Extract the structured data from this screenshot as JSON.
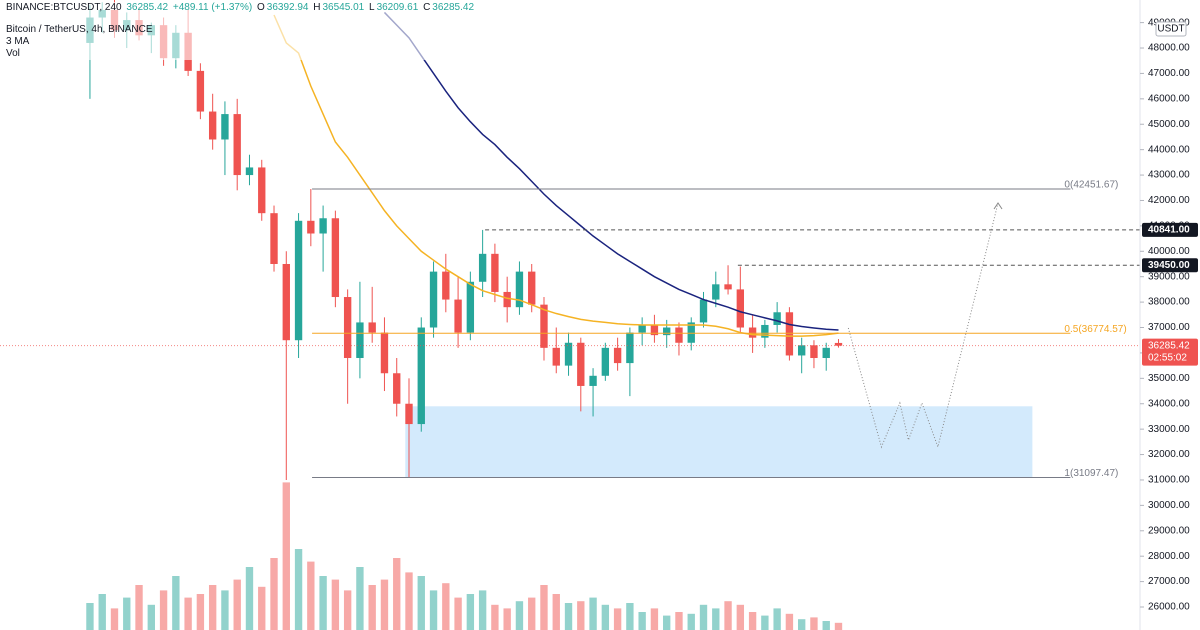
{
  "header": {
    "symbol": "BINANCE:BTCUSDT, 240",
    "change": "+489.11 (+1.37%)",
    "ohlc_letters": [
      "O",
      "H",
      "L",
      "C"
    ],
    "name": "Bitcoin / TetherUS, 4h, BINANCE",
    "ma": "3 MA",
    "vol": "Vol",
    "currency": "USDT",
    "countdown": "02:55:02"
  },
  "chart_data": {
    "type": "candlestick",
    "up_color": "#26a69a",
    "down_color": "#ef5350",
    "xlim": [
      -7.33,
      85.57
    ],
    "ylim": [
      25095,
      49890
    ],
    "vlim": [
      0,
      100
    ],
    "yticks": [
      {
        "value": 26000,
        "label": "26000.00"
      },
      {
        "value": 27000,
        "label": "27000.00"
      },
      {
        "value": 28000,
        "label": "28000.00"
      },
      {
        "value": 29000,
        "label": "29000.00"
      },
      {
        "value": 30000,
        "label": "30000.00"
      },
      {
        "value": 31000,
        "label": "31000.00"
      },
      {
        "value": 32000,
        "label": "32000.00"
      },
      {
        "value": 33000,
        "label": "33000.00"
      },
      {
        "value": 34000,
        "label": "34000.00"
      },
      {
        "value": 35000,
        "label": "35000.00"
      },
      {
        "value": 36000,
        "label": "36000.00"
      },
      {
        "value": 37000,
        "label": "37000.00"
      },
      {
        "value": 38000,
        "label": "38000.00"
      },
      {
        "value": 39000,
        "label": "39000.00"
      },
      {
        "value": 40000,
        "label": "40000.00"
      },
      {
        "value": 41000,
        "label": "41000.00"
      },
      {
        "value": 42000,
        "label": "42000.00"
      },
      {
        "value": 43000,
        "label": "43000.00"
      },
      {
        "value": 44000,
        "label": "44000.00"
      },
      {
        "value": 45000,
        "label": "45000.00"
      },
      {
        "value": 46000,
        "label": "46000.00"
      },
      {
        "value": 47000,
        "label": "47000.00"
      },
      {
        "value": 48000,
        "label": "48000.00"
      },
      {
        "value": 49000,
        "label": "49000.00"
      }
    ],
    "open": [
      48200,
      49200,
      49500,
      48700,
      49100,
      48500,
      48900,
      47600,
      48600,
      47100,
      45500,
      44400,
      45400,
      43000,
      43300,
      41500,
      39500,
      36500,
      41200,
      40700,
      41300,
      38200,
      35800,
      37200,
      36800,
      35200,
      34000,
      33200,
      37000,
      39200,
      38100,
      36800,
      38800,
      39900,
      38400,
      37800,
      39200,
      37900,
      36200,
      35500,
      36400,
      34700,
      35100,
      36200,
      35600,
      36800,
      37100,
      36700,
      37000,
      36400,
      37200,
      38100,
      38700,
      38500,
      37000,
      36600,
      37100,
      37600,
      35900,
      36300,
      35800,
      36392.94
    ],
    "high": [
      49700,
      49800,
      49900,
      49400,
      49600,
      49000,
      49200,
      48900,
      49500,
      47400,
      46200,
      45900,
      46000,
      43800,
      43600,
      41800,
      40000,
      41500,
      42451.67,
      41800,
      41600,
      38500,
      38800,
      38600,
      37400,
      35800,
      35000,
      37400,
      39600,
      39900,
      39000,
      39200,
      40841,
      40300,
      39000,
      39600,
      39500,
      38200,
      37000,
      36800,
      36600,
      35400,
      36400,
      36600,
      37000,
      37400,
      37500,
      37300,
      37200,
      37400,
      38400,
      39200,
      39450,
      39400,
      37500,
      37300,
      38000,
      37800,
      36600,
      36500,
      36400,
      36545.01
    ],
    "low": [
      46000,
      48600,
      48400,
      48000,
      48300,
      47800,
      47300,
      47200,
      46900,
      45200,
      44000,
      43000,
      42400,
      42600,
      41200,
      39200,
      31000,
      35800,
      40200,
      39200,
      37800,
      34000,
      35000,
      36400,
      34500,
      33500,
      31097.47,
      32900,
      36600,
      37600,
      36200,
      36500,
      38200,
      38000,
      37200,
      37500,
      37600,
      35700,
      35200,
      35100,
      33700,
      33500,
      34900,
      35300,
      34300,
      36300,
      36400,
      36200,
      35900,
      36100,
      37000,
      37800,
      38300,
      36800,
      36000,
      36200,
      36800,
      35700,
      35200,
      35400,
      35300,
      36209.61
    ],
    "close": [
      49200,
      49500,
      48700,
      49100,
      48500,
      48900,
      47600,
      48600,
      47100,
      45500,
      44400,
      45400,
      43000,
      43300,
      41500,
      39500,
      36500,
      41200,
      40700,
      41300,
      38200,
      35800,
      37200,
      36800,
      35200,
      34000,
      33200,
      37000,
      39200,
      38100,
      36800,
      38800,
      39900,
      38400,
      37800,
      39200,
      37900,
      36200,
      35500,
      36400,
      34700,
      35100,
      36200,
      35600,
      36800,
      37100,
      36700,
      37000,
      36400,
      37200,
      38100,
      38700,
      38500,
      37000,
      36600,
      37100,
      37600,
      35900,
      36300,
      35800,
      36200,
      36285.42
    ],
    "volume": [
      15,
      20,
      12,
      18,
      25,
      14,
      22,
      30,
      18,
      20,
      25,
      22,
      28,
      35,
      24,
      40,
      82,
      45,
      38,
      30,
      28,
      22,
      35,
      25,
      28,
      40,
      32,
      30,
      22,
      26,
      18,
      20,
      22,
      14,
      12,
      16,
      18,
      25,
      20,
      15,
      16,
      18,
      14,
      12,
      15,
      10,
      12,
      8,
      10,
      9,
      14,
      12,
      16,
      14,
      10,
      8,
      12,
      9,
      6,
      7,
      5,
      4
    ],
    "ma_lines": [
      {
        "color": "#f5b324",
        "values": [
          null,
          null,
          null,
          null,
          null,
          null,
          null,
          null,
          null,
          null,
          null,
          null,
          null,
          null,
          null,
          49300,
          48200,
          47800,
          46500,
          45400,
          44300,
          43700,
          43000,
          42300,
          41600,
          41000,
          40500,
          40000,
          39650,
          39300,
          39000,
          38700,
          38450,
          38300,
          38150,
          38080,
          37900,
          37700,
          37550,
          37430,
          37320,
          37250,
          37200,
          37150,
          37120,
          37100,
          37100,
          37100,
          37100,
          37100,
          37100,
          37050,
          36950,
          36800,
          36720,
          36700,
          36680,
          36660,
          36660,
          36680,
          36720,
          36780
        ]
      },
      {
        "color": "#1a237e",
        "values": [
          null,
          null,
          null,
          null,
          null,
          null,
          null,
          null,
          null,
          null,
          null,
          null,
          null,
          null,
          null,
          null,
          null,
          null,
          null,
          null,
          null,
          null,
          null,
          null,
          49400,
          48900,
          48400,
          47700,
          47000,
          46300,
          45650,
          45100,
          44600,
          44200,
          43700,
          43250,
          42750,
          42250,
          41800,
          41400,
          41000,
          40600,
          40250,
          39900,
          39600,
          39300,
          39000,
          38750,
          38500,
          38300,
          38100,
          37950,
          37800,
          37620,
          37500,
          37380,
          37260,
          37120,
          37040,
          36980,
          36930,
          36900
        ]
      }
    ],
    "zone": {
      "x": [
        25.7,
        76.8
      ],
      "y": [
        31097.47,
        33900
      ],
      "color": "#bbdefb"
    },
    "fib_x": [
      18.1,
      79.9
    ],
    "fib": [
      {
        "label": "0(42451.67)",
        "value": 42451.67,
        "color": "#787b86"
      },
      {
        "label": "0.5(36774.57)",
        "value": 36774.57,
        "color": "#f5a623"
      },
      {
        "label": "1(31097.47)",
        "value": 31097.47,
        "color": "#787b86"
      }
    ],
    "levels": [
      {
        "value": 40841,
        "label": "40841.00",
        "x": 32.2
      },
      {
        "value": 39450,
        "label": "39450.00",
        "x": 52.8
      }
    ],
    "projection": {
      "x": [
        61.8,
        64.5,
        66.0,
        66.7,
        67.8,
        69.1,
        74.0
      ],
      "values": [
        36980,
        32300,
        34030,
        32570,
        34030,
        32300,
        41900
      ]
    }
  }
}
